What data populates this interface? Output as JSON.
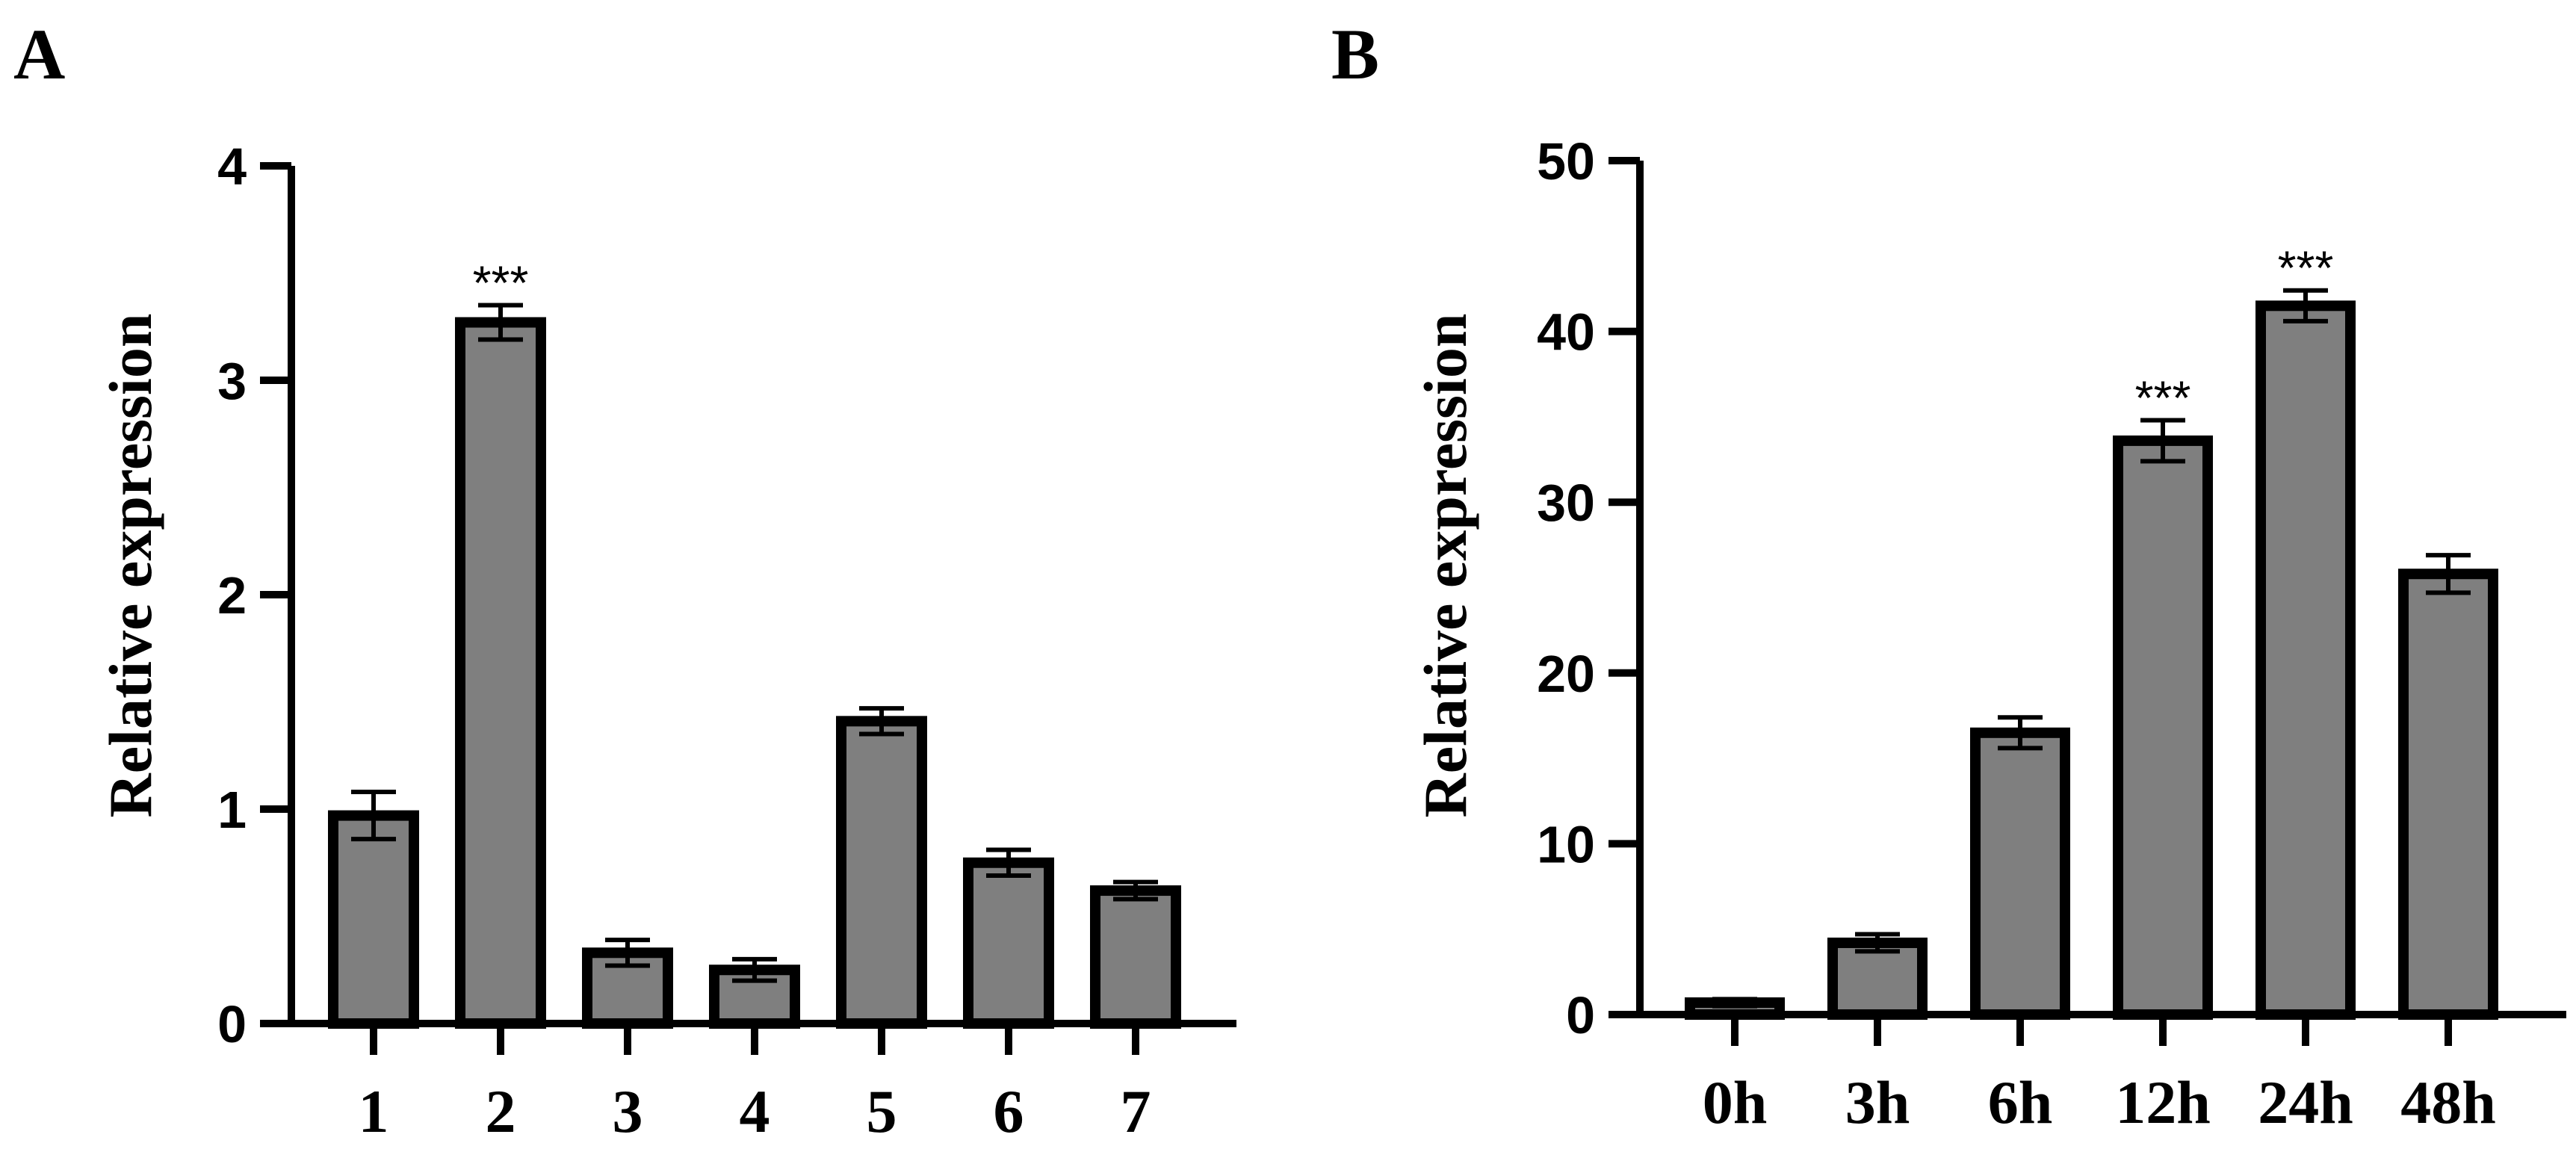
{
  "colors": {
    "bar_fill": "#7f7f7f",
    "bar_stroke": "#000000",
    "background": "#ffffff"
  },
  "chart_data": [
    {
      "type": "bar",
      "panel_label": "A",
      "title": "",
      "xlabel": "",
      "ylabel": "Relative expression",
      "ylim": [
        0,
        4
      ],
      "yticks": [
        0,
        1,
        2,
        3,
        4
      ],
      "categories": [
        "1",
        "2",
        "3",
        "4",
        "5",
        "6",
        "7"
      ],
      "values": [
        0.97,
        3.27,
        0.33,
        0.25,
        1.41,
        0.75,
        0.62
      ],
      "errors": [
        0.11,
        0.08,
        0.06,
        0.05,
        0.06,
        0.06,
        0.04
      ],
      "significance": [
        "",
        "***",
        "",
        "",
        "",
        "",
        ""
      ],
      "grid": false,
      "legend": "none"
    },
    {
      "type": "bar",
      "panel_label": "B",
      "title": "",
      "xlabel": "",
      "ylabel": "Relative expression",
      "ylim": [
        0,
        50
      ],
      "yticks": [
        0,
        10,
        20,
        30,
        40,
        50
      ],
      "categories": [
        "0h",
        "3h",
        "6h",
        "12h",
        "24h",
        "48h"
      ],
      "values": [
        0.7,
        4.2,
        16.5,
        33.6,
        41.5,
        25.8
      ],
      "errors": [
        0.2,
        0.5,
        0.9,
        1.2,
        0.9,
        1.1
      ],
      "significance": [
        "",
        "",
        "",
        "***",
        "***",
        ""
      ],
      "grid": false,
      "legend": "none"
    }
  ]
}
